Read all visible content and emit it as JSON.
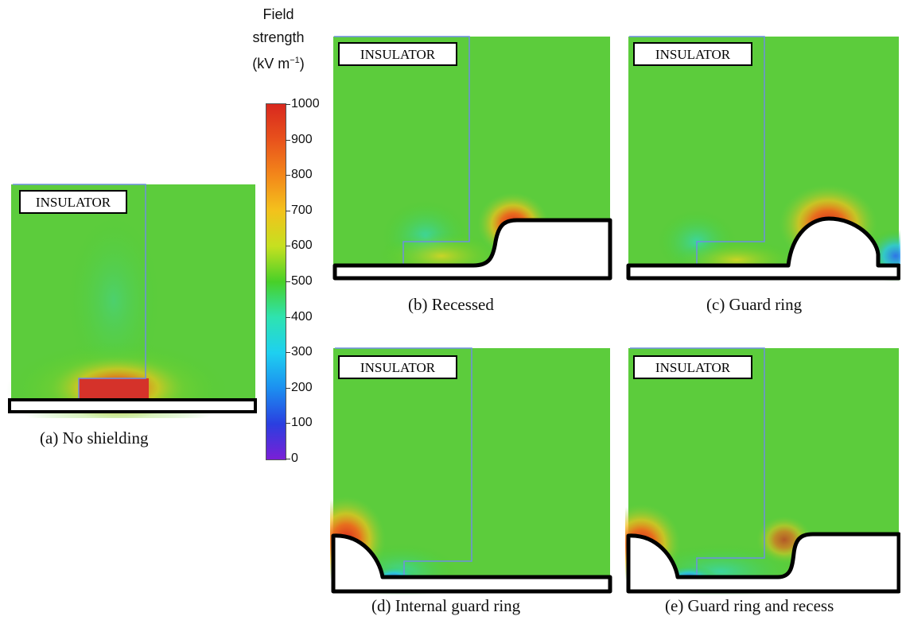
{
  "colorbar": {
    "title_line1": "Field",
    "title_line2": "strength",
    "title_unit_main": "(kV m",
    "title_unit_exp": "−1",
    "title_unit_close": ")",
    "ticks": [
      "1000",
      "900",
      "800",
      "700",
      "600",
      "500",
      "400",
      "300",
      "200",
      "100",
      "0"
    ]
  },
  "panels": {
    "a": {
      "label": "INSULATOR",
      "caption": "(a) No shielding"
    },
    "b": {
      "label": "INSULATOR",
      "caption": "(b) Recessed"
    },
    "c": {
      "label": "INSULATOR",
      "caption": "(c) Guard ring"
    },
    "d": {
      "label": "INSULATOR",
      "caption": "(d) Internal guard ring"
    },
    "e": {
      "label": "INSULATOR",
      "caption": "(e) Guard ring and recess"
    }
  }
}
